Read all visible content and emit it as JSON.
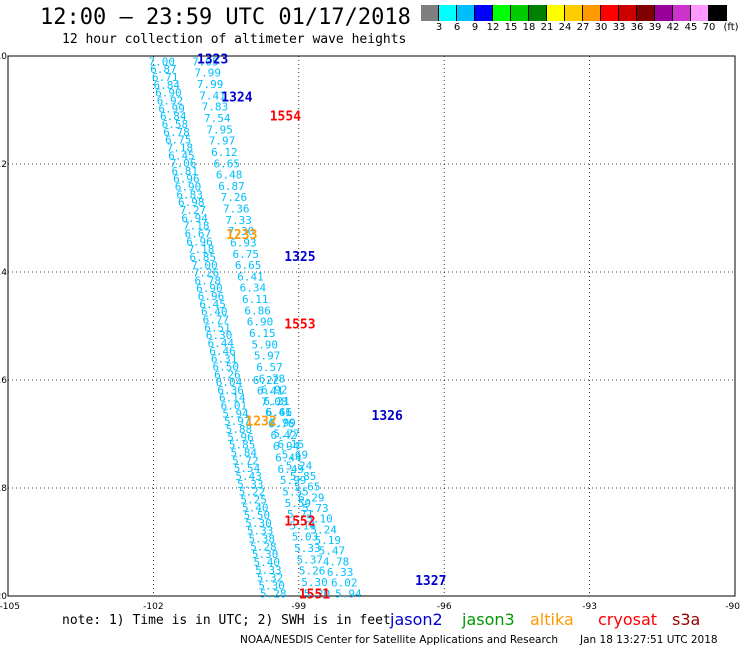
{
  "title": "12:00 – 23:59 UTC 01/17/2018",
  "subtitle": "12 hour collection of altimeter wave heights",
  "colorbar": {
    "unit": "(ft)",
    "labels": [
      "3",
      "6",
      "9",
      "12",
      "15",
      "18",
      "21",
      "24",
      "27",
      "30",
      "33",
      "36",
      "39",
      "42",
      "45",
      "70"
    ],
    "colors": [
      "#7f7f7f",
      "#00ffff",
      "#00bfff",
      "#0000ff",
      "#00ff00",
      "#00cc00",
      "#008000",
      "#ffff00",
      "#ffcc00",
      "#ff9900",
      "#ff0000",
      "#cc0000",
      "#800000",
      "#990099",
      "#cc33cc",
      "#ff99ff",
      "#000000"
    ]
  },
  "map": {
    "lon_ticks": [
      "-105",
      "-102",
      "-99",
      "-96",
      "-93",
      "-90"
    ],
    "lat_ticks": [
      "-10",
      "-12",
      "-14",
      "-16",
      "-18",
      "-20"
    ]
  },
  "chart_data": {
    "type": "scatter",
    "title": "12:00 – 23:59 UTC 01/17/2018",
    "subtitle": "12 hour collection of altimeter wave heights",
    "xlim": [
      -105,
      -90
    ],
    "ylim": [
      -20,
      -10
    ],
    "track_color": "#00bfff",
    "track_note": "SWH (ft) along descending altimeter passes, approximate values",
    "tracks": [
      {
        "lon_start": -102.1,
        "lat_start": -10.1,
        "lon_end": -99.8,
        "lat_end": -19.95,
        "values": [
          "7.00",
          "6.87",
          "6.71",
          "6.84",
          "6.90",
          "6.92",
          "6.99",
          "6.84",
          "6.58",
          "6.78",
          "6.75",
          "7.18",
          "6.45",
          "7.06",
          "6.81",
          "6.96",
          "6.90",
          "6.83",
          "6.98",
          "7.27",
          "6.94",
          "7.18",
          "6.67",
          "6.96",
          "7.18",
          "6.85",
          "7.00",
          "7.26",
          "6.78",
          "6.90",
          "6.96",
          "6.45",
          "6.40",
          "6.77",
          "6.51",
          "6.30",
          "6.44",
          "6.46",
          "6.31",
          "6.50",
          "6.26",
          "6.04",
          "6.36",
          "6.14",
          "6.01",
          "5.94",
          "5.97",
          "5.88",
          "5.96",
          "5.85",
          "5.84",
          "5.72",
          "5.54",
          "5.43",
          "5.33",
          "5.22",
          "5.25",
          "5.40",
          "5.50",
          "5.30",
          "5.33",
          "5.38",
          "5.28",
          "5.30",
          "5.40",
          "5.33",
          "5.32",
          "5.30",
          "5.28"
        ]
      },
      {
        "lon_start": -101.2,
        "lat_start": -10.1,
        "lon_end": -98.9,
        "lat_end": -19.95,
        "values": [
          "7.05",
          "7.99",
          "7.99",
          "7.41",
          "7.83",
          "7.54",
          "7.95",
          "7.97",
          "6.12",
          "6.65",
          "6.48",
          "6.87",
          "7.26",
          "7.36",
          "7.33",
          "7.30",
          "6.93",
          "6.75",
          "6.65",
          "6.41",
          "6.34",
          "6.11",
          "6.86",
          "6.90",
          "6.15",
          "5.90",
          "5.97",
          "6.57",
          "6.78",
          "6.92",
          "6.21",
          "6.66",
          "6.76",
          "6.42",
          "6.94",
          "6.44",
          "6.49",
          "5.99",
          "5.55",
          "5.59",
          "5.71",
          "5.14",
          "5.03",
          "5.33",
          "5.37",
          "5.26",
          "5.30",
          "5.20"
        ]
      },
      {
        "lon_start": -99.95,
        "lat_start": -16.0,
        "lon_end": -98.25,
        "lat_end": -19.95,
        "values": [
          "6.22",
          "6.41",
          "7.08",
          "6.41",
          "5.99",
          "5.77",
          "6.16",
          "5.69",
          "5.24",
          "5.85",
          "5.65",
          "6.29",
          "5.73",
          "5.10",
          "5.24",
          "5.19",
          "5.47",
          "4.78",
          "6.33",
          "6.02",
          "5.94"
        ]
      }
    ],
    "pass_labels": [
      {
        "text": "1323",
        "lon": -101.1,
        "lat": -10.05,
        "mission": "jason2"
      },
      {
        "text": "1324",
        "lon": -100.6,
        "lat": -10.75,
        "mission": "jason2"
      },
      {
        "text": "1554",
        "lon": -99.6,
        "lat": -11.1,
        "mission": "cryosat"
      },
      {
        "text": "1233",
        "lon": -100.5,
        "lat": -13.3,
        "mission": "altika"
      },
      {
        "text": "1325",
        "lon": -99.3,
        "lat": -13.7,
        "mission": "jason2"
      },
      {
        "text": "1553",
        "lon": -99.3,
        "lat": -14.95,
        "mission": "cryosat"
      },
      {
        "text": "1326",
        "lon": -97.5,
        "lat": -16.65,
        "mission": "jason2"
      },
      {
        "text": "1232",
        "lon": -100.1,
        "lat": -16.75,
        "mission": "altika"
      },
      {
        "text": "1552",
        "lon": -99.3,
        "lat": -18.6,
        "mission": "cryosat"
      },
      {
        "text": "1327",
        "lon": -96.6,
        "lat": -19.7,
        "mission": "jason2"
      },
      {
        "text": "1551",
        "lon": -99.0,
        "lat": -19.95,
        "mission": "cryosat"
      }
    ]
  },
  "note": "note: 1) Time is in UTC; 2) SWH is in feet",
  "legend": [
    {
      "label": "jason2",
      "color": "#0000cc"
    },
    {
      "label": "jason3",
      "color": "#009900"
    },
    {
      "label": "altika",
      "color": "#ff9900"
    },
    {
      "label": "cryosat",
      "color": "#ff0000"
    },
    {
      "label": "s3a",
      "color": "#990000"
    }
  ],
  "footer": "NOAA/NESDIS Center for Satellite Applications and Research",
  "footer_time": "Jan 18 13:27:51 UTC 2018"
}
